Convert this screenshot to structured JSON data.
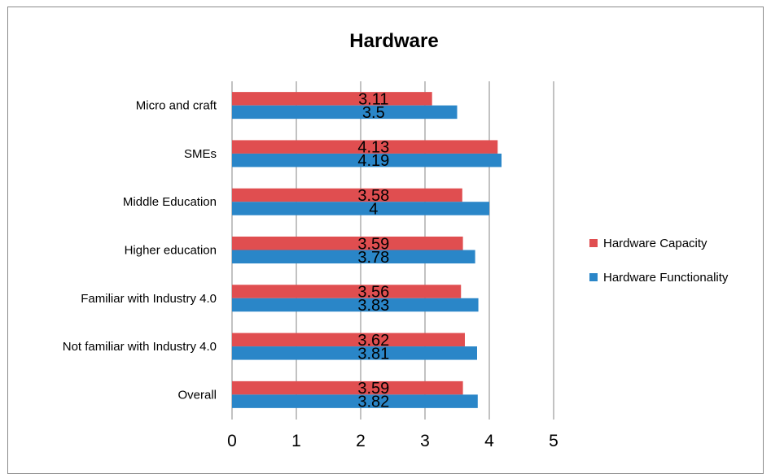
{
  "chart_data": {
    "type": "bar",
    "orientation": "horizontal",
    "title": "Hardware",
    "categories": [
      "Micro and craft",
      "SMEs",
      "Middle Education",
      "Higher education",
      "Familiar with Industry 4.0",
      "Not familiar with Industry 4.0",
      "Overall"
    ],
    "series": [
      {
        "name": "Hardware Capacity",
        "color": "#e04e50",
        "values": [
          3.11,
          4.13,
          3.58,
          3.59,
          3.56,
          3.62,
          3.59
        ],
        "labels": [
          "3.11",
          "4.13",
          "3.58",
          "3.59",
          "3.56",
          "3.62",
          "3.59"
        ]
      },
      {
        "name": "Hardware Functionality",
        "color": "#2a86c8",
        "values": [
          3.5,
          4.19,
          4,
          3.78,
          3.83,
          3.81,
          3.82
        ],
        "labels": [
          "3.5",
          "4.19",
          "4",
          "3.78",
          "3.83",
          "3.81",
          "3.82"
        ]
      }
    ],
    "xlim": [
      0,
      5
    ],
    "xticks": [
      "0",
      "1",
      "2",
      "3",
      "4",
      "5"
    ],
    "grid": true,
    "legend_position": "right"
  }
}
